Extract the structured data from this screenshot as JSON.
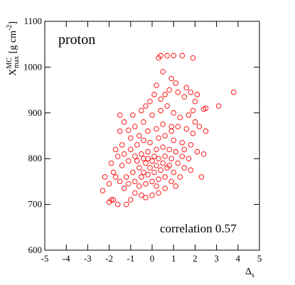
{
  "chart_data": {
    "type": "scatter",
    "title": "proton",
    "annotation": "correlation 0.57",
    "xlabel": {
      "main": "Δ",
      "sub": "s"
    },
    "ylabel": {
      "main": "X",
      "sup": "MC",
      "sub": "max",
      "unit": " [g cm",
      "unit_sup": "-2",
      "unit_end": "]"
    },
    "xlim": [
      -5,
      5
    ],
    "xticks": [
      -5,
      -4,
      -3,
      -2,
      -1,
      0,
      1,
      2,
      3,
      4,
      5
    ],
    "ylim": [
      600,
      1100
    ],
    "yticks": [
      600,
      700,
      800,
      900,
      1000,
      1100
    ],
    "color": "#ff0000",
    "grid": false,
    "x": [
      3.8,
      3.1,
      2.5,
      2.4,
      1.9,
      1.4,
      1.0,
      0.7,
      0.4,
      0.3,
      0.5,
      0.9,
      1.1,
      1.6,
      1.8,
      2.1,
      2.0,
      1.5,
      1.2,
      0.8,
      0.6,
      0.2,
      0.1,
      -0.1,
      -0.3,
      -0.5,
      -0.9,
      -1.3,
      -1.5,
      -1.1,
      -0.8,
      -0.4,
      0,
      0.4,
      0.7,
      1.0,
      1.3,
      1.7,
      2.0,
      2.2,
      2.5,
      1.9,
      1.6,
      1.2,
      0.9,
      0.5,
      0.2,
      -0.2,
      -0.6,
      -1.0,
      -1.4,
      -1.7,
      -1.9,
      -2.2,
      -2.3,
      -2.0,
      -1.8,
      -1.6,
      -1.3,
      -1.0,
      -0.7,
      -0.4,
      -0.1,
      0.3,
      0.6,
      1.0,
      1.4,
      1.8,
      2.1,
      2.4,
      1.7,
      1.4,
      1.1,
      0.8,
      0.5,
      0.2,
      -0.2,
      -0.5,
      -0.8,
      -1.1,
      -1.4,
      -1.7,
      -1.9,
      -1.6,
      -1.2,
      -1.0,
      -0.8,
      -0.5,
      -0.3,
      0,
      0.3,
      0.6,
      -1.3,
      -1.5,
      -1.2,
      -0.9,
      -0.6,
      -0.3,
      0,
      0.3,
      0.6,
      0.9,
      1.2,
      1.5,
      1.8,
      1.3,
      1.0,
      0.7,
      0.4,
      0.1,
      -0.2,
      -0.5,
      -0.8,
      -1.1,
      -0.6,
      -0.3,
      0,
      0.3,
      0.6,
      0.9,
      -0.1,
      0.2,
      -0.4,
      -0.7,
      0.5,
      0.8,
      1.1,
      -1.8,
      -2.0,
      0.1,
      -0.2,
      -0.4,
      0.2,
      1.5,
      2.3,
      -1.5,
      0.9,
      0.4,
      1.9
    ],
    "values": [
      945,
      915,
      910,
      908,
      1020,
      1025,
      1025,
      1025,
      1025,
      1020,
      990,
      975,
      965,
      955,
      945,
      940,
      925,
      935,
      945,
      950,
      940,
      960,
      940,
      925,
      915,
      905,
      895,
      880,
      895,
      862,
      870,
      880,
      895,
      905,
      915,
      900,
      890,
      895,
      880,
      870,
      860,
      855,
      865,
      870,
      870,
      875,
      865,
      860,
      850,
      845,
      830,
      820,
      790,
      760,
      730,
      745,
      770,
      805,
      810,
      820,
      830,
      840,
      835,
      845,
      850,
      840,
      835,
      830,
      815,
      810,
      800,
      805,
      815,
      820,
      825,
      820,
      815,
      810,
      805,
      795,
      785,
      760,
      710,
      700,
      700,
      710,
      725,
      720,
      715,
      720,
      725,
      735,
      735,
      750,
      760,
      770,
      780,
      790,
      795,
      800,
      805,
      800,
      790,
      780,
      775,
      760,
      770,
      780,
      775,
      770,
      765,
      760,
      750,
      745,
      740,
      745,
      750,
      755,
      760,
      750,
      780,
      785,
      800,
      795,
      790,
      785,
      740,
      710,
      705,
      805,
      800,
      770,
      740,
      820,
      760,
      860,
      860,
      930,
      905
    ]
  }
}
